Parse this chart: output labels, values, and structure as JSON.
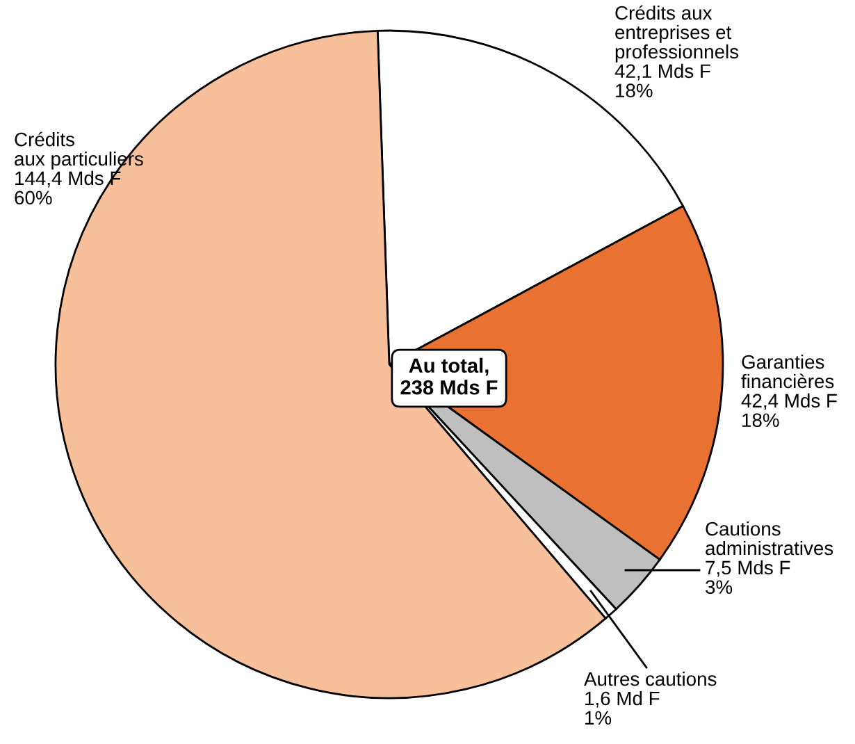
{
  "chart_data": {
    "type": "pie",
    "categories": [
      "Crédits aux\nentreprises et\nprofessionnels",
      "Garanties\nfinancières",
      "Cautions\nadministratives",
      "Autres cautions",
      "Crédits\naux particuliers"
    ],
    "values": [
      42.1,
      42.4,
      7.5,
      1.6,
      144.4
    ],
    "value_labels": [
      "42,1 Mds F\n18%",
      "42,4 Mds F\n18%",
      "7,5 Mds F\n3%",
      "1,6 Md F\n1%",
      "144,4 Mds F\n60%"
    ],
    "colors": [
      "#ffffff",
      "#e97132",
      "#bfbfbf",
      "#ffffff",
      "#f7bf9a"
    ],
    "annotations": [
      "Au total,\n238 Mds F"
    ]
  }
}
